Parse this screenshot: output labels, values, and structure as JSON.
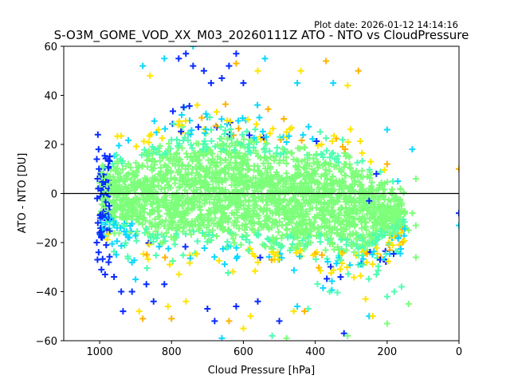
{
  "chart_data": {
    "type": "scatter",
    "title": "S-O3M_GOME_VOD_XX_M03_20260111Z ATO - NTO vs CloudPressure",
    "plot_date": "Plot date: 2026-01-12 14:14:16",
    "xlabel": "Cloud Pressure [hPa]",
    "ylabel": "ATO - NTO [DU]",
    "xlim": [
      1100,
      0
    ],
    "ylim": [
      -60,
      60
    ],
    "xticks": [
      1000,
      800,
      600,
      400,
      200,
      0
    ],
    "xtick_labels": [
      "1000",
      "800",
      "600",
      "400",
      "200",
      "0"
    ],
    "yticks": [
      60,
      40,
      20,
      0,
      -20,
      -40,
      -60
    ],
    "ytick_labels": [
      "60",
      "40",
      "20",
      "0",
      "−20",
      "−40",
      "−60"
    ],
    "reference_line": {
      "y": 0,
      "color": "#000000"
    },
    "marker": "+",
    "grid": false,
    "legend": "none",
    "color_classes": {
      "blue": "#0a2cff",
      "cyan": "#0cd8ff",
      "aqua": "#4dffb0",
      "green": "#7dff7a",
      "yellow": "#ffe500",
      "orange": "#ffb200"
    },
    "dense_core": {
      "description": "Dense cloud of points; bulk near ATO-NTO = 0",
      "x_range": [
        1000,
        150
      ],
      "y_center": 0,
      "dominant_color": "green",
      "envelope": [
        {
          "x": 1000,
          "ymin": -28,
          "ymax": 22
        },
        {
          "x": 950,
          "ymin": -32,
          "ymax": 28
        },
        {
          "x": 900,
          "ymin": -35,
          "ymax": 32
        },
        {
          "x": 800,
          "ymin": -38,
          "ymax": 42
        },
        {
          "x": 700,
          "ymin": -38,
          "ymax": 45
        },
        {
          "x": 600,
          "ymin": -40,
          "ymax": 42
        },
        {
          "x": 500,
          "ymin": -42,
          "ymax": 38
        },
        {
          "x": 400,
          "ymin": -42,
          "ymax": 35
        },
        {
          "x": 300,
          "ymin": -45,
          "ymax": 30
        },
        {
          "x": 250,
          "ymin": -42,
          "ymax": 22
        },
        {
          "x": 200,
          "ymin": -35,
          "ymax": 12
        },
        {
          "x": 150,
          "ymin": -25,
          "ymax": 4
        }
      ]
    },
    "points": [
      {
        "x": 1005,
        "y": 24,
        "c": "blue"
      },
      {
        "x": 1003,
        "y": 18,
        "c": "blue"
      },
      {
        "x": 1008,
        "y": 14,
        "c": "blue"
      },
      {
        "x": 1002,
        "y": 10,
        "c": "blue"
      },
      {
        "x": 1006,
        "y": 6,
        "c": "blue"
      },
      {
        "x": 1004,
        "y": 2,
        "c": "blue"
      },
      {
        "x": 1007,
        "y": -2,
        "c": "blue"
      },
      {
        "x": 1005,
        "y": -12,
        "c": "blue"
      },
      {
        "x": 1000,
        "y": -16,
        "c": "blue"
      },
      {
        "x": 1008,
        "y": -20,
        "c": "blue"
      },
      {
        "x": 1003,
        "y": -24,
        "c": "blue"
      },
      {
        "x": 1006,
        "y": -27,
        "c": "blue"
      },
      {
        "x": 995,
        "y": -31,
        "c": "blue"
      },
      {
        "x": 985,
        "y": -33,
        "c": "blue"
      },
      {
        "x": 975,
        "y": -28,
        "c": "blue"
      },
      {
        "x": 960,
        "y": -34,
        "c": "blue"
      },
      {
        "x": 940,
        "y": -40,
        "c": "blue"
      },
      {
        "x": 935,
        "y": -48,
        "c": "blue"
      },
      {
        "x": 910,
        "y": -40,
        "c": "blue"
      },
      {
        "x": 870,
        "y": -37,
        "c": "blue"
      },
      {
        "x": 850,
        "y": -44,
        "c": "blue"
      },
      {
        "x": 820,
        "y": -37,
        "c": "blue"
      },
      {
        "x": 780,
        "y": 55,
        "c": "blue"
      },
      {
        "x": 760,
        "y": 57,
        "c": "blue"
      },
      {
        "x": 740,
        "y": 52,
        "c": "blue"
      },
      {
        "x": 710,
        "y": 50,
        "c": "blue"
      },
      {
        "x": 690,
        "y": 45,
        "c": "blue"
      },
      {
        "x": 660,
        "y": 47,
        "c": "blue"
      },
      {
        "x": 640,
        "y": 52,
        "c": "blue"
      },
      {
        "x": 620,
        "y": 57,
        "c": "blue"
      },
      {
        "x": 600,
        "y": 45,
        "c": "blue"
      },
      {
        "x": 700,
        "y": -47,
        "c": "blue"
      },
      {
        "x": 680,
        "y": -52,
        "c": "blue"
      },
      {
        "x": 620,
        "y": -46,
        "c": "blue"
      },
      {
        "x": 560,
        "y": -44,
        "c": "blue"
      },
      {
        "x": 500,
        "y": -52,
        "c": "blue"
      },
      {
        "x": 320,
        "y": -57,
        "c": "blue"
      },
      {
        "x": 250,
        "y": -3,
        "c": "blue"
      },
      {
        "x": 230,
        "y": 8,
        "c": "blue"
      },
      {
        "x": 0,
        "y": -8,
        "c": "blue"
      },
      {
        "x": 880,
        "y": 52,
        "c": "cyan"
      },
      {
        "x": 820,
        "y": 55,
        "c": "cyan"
      },
      {
        "x": 740,
        "y": 60,
        "c": "cyan"
      },
      {
        "x": 540,
        "y": 55,
        "c": "cyan"
      },
      {
        "x": 450,
        "y": 45,
        "c": "cyan"
      },
      {
        "x": 350,
        "y": 45,
        "c": "cyan"
      },
      {
        "x": 200,
        "y": 26,
        "c": "cyan"
      },
      {
        "x": 130,
        "y": 18,
        "c": "cyan"
      },
      {
        "x": 170,
        "y": 5,
        "c": "cyan"
      },
      {
        "x": 660,
        "y": -59,
        "c": "cyan"
      },
      {
        "x": 450,
        "y": -46,
        "c": "cyan"
      },
      {
        "x": 250,
        "y": -50,
        "c": "cyan"
      },
      {
        "x": 0,
        "y": -13,
        "c": "cyan"
      },
      {
        "x": 900,
        "y": -35,
        "c": "cyan"
      },
      {
        "x": 230,
        "y": -33,
        "c": "aqua"
      },
      {
        "x": 160,
        "y": -38,
        "c": "aqua"
      },
      {
        "x": 200,
        "y": -42,
        "c": "aqua"
      },
      {
        "x": 180,
        "y": -40,
        "c": "aqua"
      },
      {
        "x": 520,
        "y": -58,
        "c": "aqua"
      },
      {
        "x": 420,
        "y": -47,
        "c": "aqua"
      },
      {
        "x": 360,
        "y": -40,
        "c": "aqua"
      },
      {
        "x": 200,
        "y": -53,
        "c": "green"
      },
      {
        "x": 140,
        "y": -45,
        "c": "green"
      },
      {
        "x": 120,
        "y": -26,
        "c": "green"
      },
      {
        "x": 140,
        "y": -15,
        "c": "green"
      },
      {
        "x": 130,
        "y": -8,
        "c": "green"
      },
      {
        "x": 120,
        "y": -13,
        "c": "green"
      },
      {
        "x": 480,
        "y": -59,
        "c": "green"
      },
      {
        "x": 310,
        "y": -58,
        "c": "green"
      },
      {
        "x": 120,
        "y": 6,
        "c": "green"
      },
      {
        "x": 860,
        "y": 48,
        "c": "yellow"
      },
      {
        "x": 560,
        "y": 50,
        "c": "yellow"
      },
      {
        "x": 440,
        "y": 50,
        "c": "yellow"
      },
      {
        "x": 310,
        "y": 44,
        "c": "yellow"
      },
      {
        "x": 890,
        "y": -48,
        "c": "yellow"
      },
      {
        "x": 810,
        "y": -46,
        "c": "yellow"
      },
      {
        "x": 760,
        "y": -44,
        "c": "yellow"
      },
      {
        "x": 600,
        "y": -55,
        "c": "yellow"
      },
      {
        "x": 580,
        "y": -50,
        "c": "yellow"
      },
      {
        "x": 460,
        "y": -48,
        "c": "yellow"
      },
      {
        "x": 240,
        "y": -50,
        "c": "yellow"
      },
      {
        "x": 260,
        "y": -43,
        "c": "yellow"
      },
      {
        "x": 370,
        "y": 54,
        "c": "orange"
      },
      {
        "x": 280,
        "y": 50,
        "c": "orange"
      },
      {
        "x": 620,
        "y": 53,
        "c": "orange"
      },
      {
        "x": 880,
        "y": -51,
        "c": "orange"
      },
      {
        "x": 800,
        "y": -51,
        "c": "orange"
      },
      {
        "x": 640,
        "y": -52,
        "c": "orange"
      },
      {
        "x": 430,
        "y": -48,
        "c": "orange"
      },
      {
        "x": 200,
        "y": 12,
        "c": "orange"
      },
      {
        "x": 0,
        "y": 10,
        "c": "orange"
      }
    ]
  }
}
